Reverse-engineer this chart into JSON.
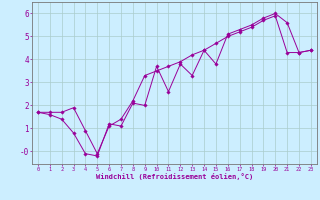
{
  "xlabel": "Windchill (Refroidissement éolien,°C)",
  "x_values": [
    0,
    1,
    2,
    3,
    4,
    5,
    6,
    7,
    8,
    9,
    10,
    11,
    12,
    13,
    14,
    15,
    16,
    17,
    18,
    19,
    20,
    21,
    22,
    23
  ],
  "y_line1": [
    1.7,
    1.6,
    1.4,
    0.8,
    -0.1,
    -0.2,
    1.2,
    1.1,
    2.1,
    2.0,
    3.7,
    2.6,
    3.8,
    3.3,
    4.4,
    3.8,
    5.1,
    5.3,
    5.5,
    5.8,
    6.0,
    5.6,
    4.3,
    4.4
  ],
  "y_line2": [
    1.7,
    1.7,
    1.7,
    1.9,
    0.9,
    -0.1,
    1.1,
    1.4,
    2.2,
    3.3,
    3.5,
    3.7,
    3.9,
    4.2,
    4.4,
    4.7,
    5.0,
    5.2,
    5.4,
    5.7,
    5.9,
    4.3,
    4.3,
    4.4
  ],
  "bg_color": "#cceeff",
  "grid_color": "#aacccc",
  "line_color": "#990099",
  "ylim": [
    -0.55,
    6.5
  ],
  "xlim": [
    -0.5,
    23.5
  ],
  "yticks": [
    0,
    1,
    2,
    3,
    4,
    5,
    6
  ],
  "xticks": [
    0,
    1,
    2,
    3,
    4,
    5,
    6,
    7,
    8,
    9,
    10,
    11,
    12,
    13,
    14,
    15,
    16,
    17,
    18,
    19,
    20,
    21,
    22,
    23
  ]
}
